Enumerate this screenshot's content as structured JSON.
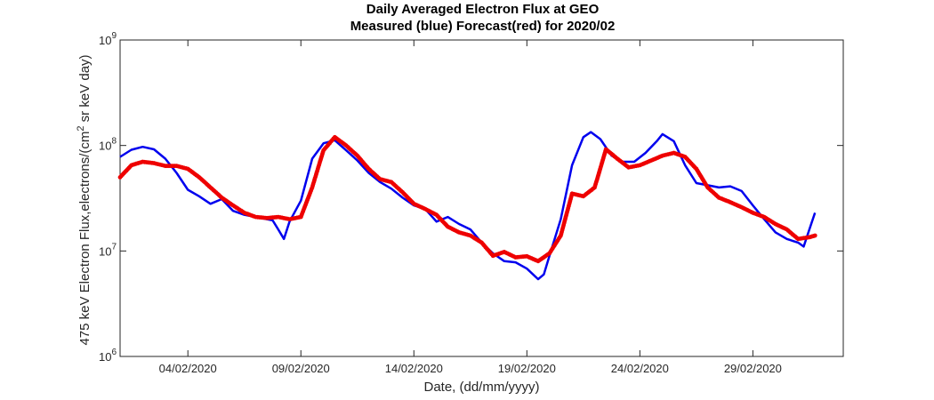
{
  "chart_data": {
    "type": "line",
    "title": "Daily Averaged Electron Flux at GEO",
    "subtitle": "Measured (blue) Forecast(red) for 2020/02",
    "xlabel": "Date, (dd/mm/yyyy)",
    "ylabel": "475 keV Electron Flux,electrons/(cm² sr keV day)",
    "ylabel_parts": {
      "pre": "475 keV Electron Flux,electrons/(cm",
      "sup": "2",
      "post": " sr keV day)"
    },
    "yscale": "log",
    "ylim": [
      1000000,
      1000000000
    ],
    "xlim": [
      "2020-01-31",
      "2020-03-03"
    ],
    "grid": false,
    "x_ticks": [
      "04/02/2020",
      "09/02/2020",
      "14/02/2020",
      "19/02/2020",
      "24/02/2020",
      "29/02/2020"
    ],
    "x_tick_days": [
      3,
      8,
      13,
      18,
      23,
      28
    ],
    "y_ticks": [
      {
        "base": "10",
        "exp": "6",
        "value": 1000000
      },
      {
        "base": "10",
        "exp": "7",
        "value": 10000000
      },
      {
        "base": "10",
        "exp": "8",
        "value": 100000000
      },
      {
        "base": "10",
        "exp": "9",
        "value": 1000000000
      }
    ],
    "series": [
      {
        "color": "#0000ee",
        "style": "line",
        "points": [
          [
            "2020-01-31 00:00",
            78000000
          ],
          [
            "2020-01-31 12:00",
            91000000
          ],
          [
            "2020-02-01 00:00",
            97000000
          ],
          [
            "2020-02-01 12:00",
            92000000
          ],
          [
            "2020-02-02 00:00",
            75000000
          ],
          [
            "2020-02-02 12:00",
            55000000
          ],
          [
            "2020-02-03 00:00",
            38000000
          ],
          [
            "2020-02-03 12:00",
            33000000
          ],
          [
            "2020-02-04 00:00",
            28000000
          ],
          [
            "2020-02-04 12:00",
            31000000
          ],
          [
            "2020-02-05 00:00",
            24000000
          ],
          [
            "2020-02-05 12:00",
            22000000
          ],
          [
            "2020-02-06 00:00",
            21000000
          ],
          [
            "2020-02-06 12:00",
            20000000
          ],
          [
            "2020-02-06 18:00",
            19500000
          ],
          [
            "2020-02-07 00:00",
            16000000
          ],
          [
            "2020-02-07 06:00",
            13000000
          ],
          [
            "2020-02-07 12:00",
            19000000
          ],
          [
            "2020-02-08 00:00",
            30000000
          ],
          [
            "2020-02-08 12:00",
            75000000
          ],
          [
            "2020-02-09 00:00",
            105000000
          ],
          [
            "2020-02-09 12:00",
            112000000
          ],
          [
            "2020-02-10 00:00",
            90000000
          ],
          [
            "2020-02-10 12:00",
            72000000
          ],
          [
            "2020-02-11 00:00",
            55000000
          ],
          [
            "2020-02-11 12:00",
            45000000
          ],
          [
            "2020-02-12 00:00",
            39000000
          ],
          [
            "2020-02-12 12:00",
            32000000
          ],
          [
            "2020-02-13 00:00",
            27000000
          ],
          [
            "2020-02-13 12:00",
            25000000
          ],
          [
            "2020-02-14 00:00",
            19000000
          ],
          [
            "2020-02-14 12:00",
            21000000
          ],
          [
            "2020-02-15 00:00",
            18000000
          ],
          [
            "2020-02-15 12:00",
            16000000
          ],
          [
            "2020-02-16 00:00",
            12000000
          ],
          [
            "2020-02-16 12:00",
            9500000
          ],
          [
            "2020-02-17 00:00",
            8000000
          ],
          [
            "2020-02-17 12:00",
            7800000
          ],
          [
            "2020-02-18 00:00",
            6800000
          ],
          [
            "2020-02-18 12:00",
            5400000
          ],
          [
            "2020-02-18 18:00",
            6000000
          ],
          [
            "2020-02-19 00:00",
            9000000
          ],
          [
            "2020-02-19 12:00",
            20000000
          ],
          [
            "2020-02-20 00:00",
            65000000
          ],
          [
            "2020-02-20 12:00",
            120000000
          ],
          [
            "2020-02-20 20:00",
            134000000
          ],
          [
            "2020-02-21 06:00",
            115000000
          ],
          [
            "2020-02-21 18:00",
            80000000
          ],
          [
            "2020-02-22 06:00",
            70000000
          ],
          [
            "2020-02-22 18:00",
            70000000
          ],
          [
            "2020-02-23 06:00",
            85000000
          ],
          [
            "2020-02-23 18:00",
            110000000
          ],
          [
            "2020-02-24 00:00",
            128000000
          ],
          [
            "2020-02-24 12:00",
            110000000
          ],
          [
            "2020-02-25 00:00",
            65000000
          ],
          [
            "2020-02-25 12:00",
            44000000
          ],
          [
            "2020-02-26 00:00",
            42000000
          ],
          [
            "2020-02-26 12:00",
            40000000
          ],
          [
            "2020-02-27 00:00",
            41000000
          ],
          [
            "2020-02-27 12:00",
            37000000
          ],
          [
            "2020-02-28 00:00",
            27000000
          ],
          [
            "2020-02-28 12:00",
            20000000
          ],
          [
            "2020-02-29 00:00",
            15000000
          ],
          [
            "2020-02-29 12:00",
            13000000
          ],
          [
            "2020-03-01 00:00",
            12000000
          ],
          [
            "2020-03-01 06:00",
            11000000
          ],
          [
            "2020-03-01 12:00",
            16000000
          ],
          [
            "2020-03-01 18:00",
            23000000
          ]
        ]
      },
      {
        "color": "#ee0000",
        "style": "markers",
        "points": [
          [
            "2020-01-31 00:00",
            50000000
          ],
          [
            "2020-01-31 12:00",
            65000000
          ],
          [
            "2020-02-01 00:00",
            70000000
          ],
          [
            "2020-02-01 12:00",
            68000000
          ],
          [
            "2020-02-02 00:00",
            64000000
          ],
          [
            "2020-02-02 12:00",
            64000000
          ],
          [
            "2020-02-03 00:00",
            60000000
          ],
          [
            "2020-02-03 12:00",
            50000000
          ],
          [
            "2020-02-04 00:00",
            40000000
          ],
          [
            "2020-02-04 12:00",
            32000000
          ],
          [
            "2020-02-05 00:00",
            27000000
          ],
          [
            "2020-02-05 12:00",
            23000000
          ],
          [
            "2020-02-06 00:00",
            21000000
          ],
          [
            "2020-02-06 12:00",
            20500000
          ],
          [
            "2020-02-07 00:00",
            21000000
          ],
          [
            "2020-02-07 12:00",
            20000000
          ],
          [
            "2020-02-08 00:00",
            21000000
          ],
          [
            "2020-02-08 12:00",
            40000000
          ],
          [
            "2020-02-09 00:00",
            90000000
          ],
          [
            "2020-02-09 12:00",
            120000000
          ],
          [
            "2020-02-10 00:00",
            100000000
          ],
          [
            "2020-02-10 12:00",
            80000000
          ],
          [
            "2020-02-11 00:00",
            60000000
          ],
          [
            "2020-02-11 12:00",
            48000000
          ],
          [
            "2020-02-12 00:00",
            45000000
          ],
          [
            "2020-02-12 12:00",
            36000000
          ],
          [
            "2020-02-13 00:00",
            28000000
          ],
          [
            "2020-02-13 12:00",
            25000000
          ],
          [
            "2020-02-14 00:00",
            22000000
          ],
          [
            "2020-02-14 12:00",
            17000000
          ],
          [
            "2020-02-15 00:00",
            15000000
          ],
          [
            "2020-02-15 12:00",
            14000000
          ],
          [
            "2020-02-16 00:00",
            12000000
          ],
          [
            "2020-02-16 12:00",
            9000000
          ],
          [
            "2020-02-17 00:00",
            9800000
          ],
          [
            "2020-02-17 12:00",
            8700000
          ],
          [
            "2020-02-18 00:00",
            8900000
          ],
          [
            "2020-02-18 12:00",
            8000000
          ],
          [
            "2020-02-19 00:00",
            9500000
          ],
          [
            "2020-02-19 12:00",
            14000000
          ],
          [
            "2020-02-20 00:00",
            35000000
          ],
          [
            "2020-02-20 12:00",
            33000000
          ],
          [
            "2020-02-21 00:00",
            40000000
          ],
          [
            "2020-02-21 12:00",
            92000000
          ],
          [
            "2020-02-22 00:00",
            75000000
          ],
          [
            "2020-02-22 12:00",
            62000000
          ],
          [
            "2020-02-23 00:00",
            65000000
          ],
          [
            "2020-02-23 12:00",
            72000000
          ],
          [
            "2020-02-24 00:00",
            80000000
          ],
          [
            "2020-02-24 12:00",
            85000000
          ],
          [
            "2020-02-25 00:00",
            78000000
          ],
          [
            "2020-02-25 12:00",
            60000000
          ],
          [
            "2020-02-26 00:00",
            40000000
          ],
          [
            "2020-02-26 12:00",
            32000000
          ],
          [
            "2020-02-27 00:00",
            29000000
          ],
          [
            "2020-02-27 12:00",
            26000000
          ],
          [
            "2020-02-28 00:00",
            23000000
          ],
          [
            "2020-02-28 12:00",
            21000000
          ],
          [
            "2020-02-29 00:00",
            18000000
          ],
          [
            "2020-02-29 12:00",
            16000000
          ],
          [
            "2020-03-01 00:00",
            13000000
          ],
          [
            "2020-03-01 12:00",
            13500000
          ],
          [
            "2020-03-01 18:00",
            14000000
          ]
        ]
      }
    ]
  }
}
